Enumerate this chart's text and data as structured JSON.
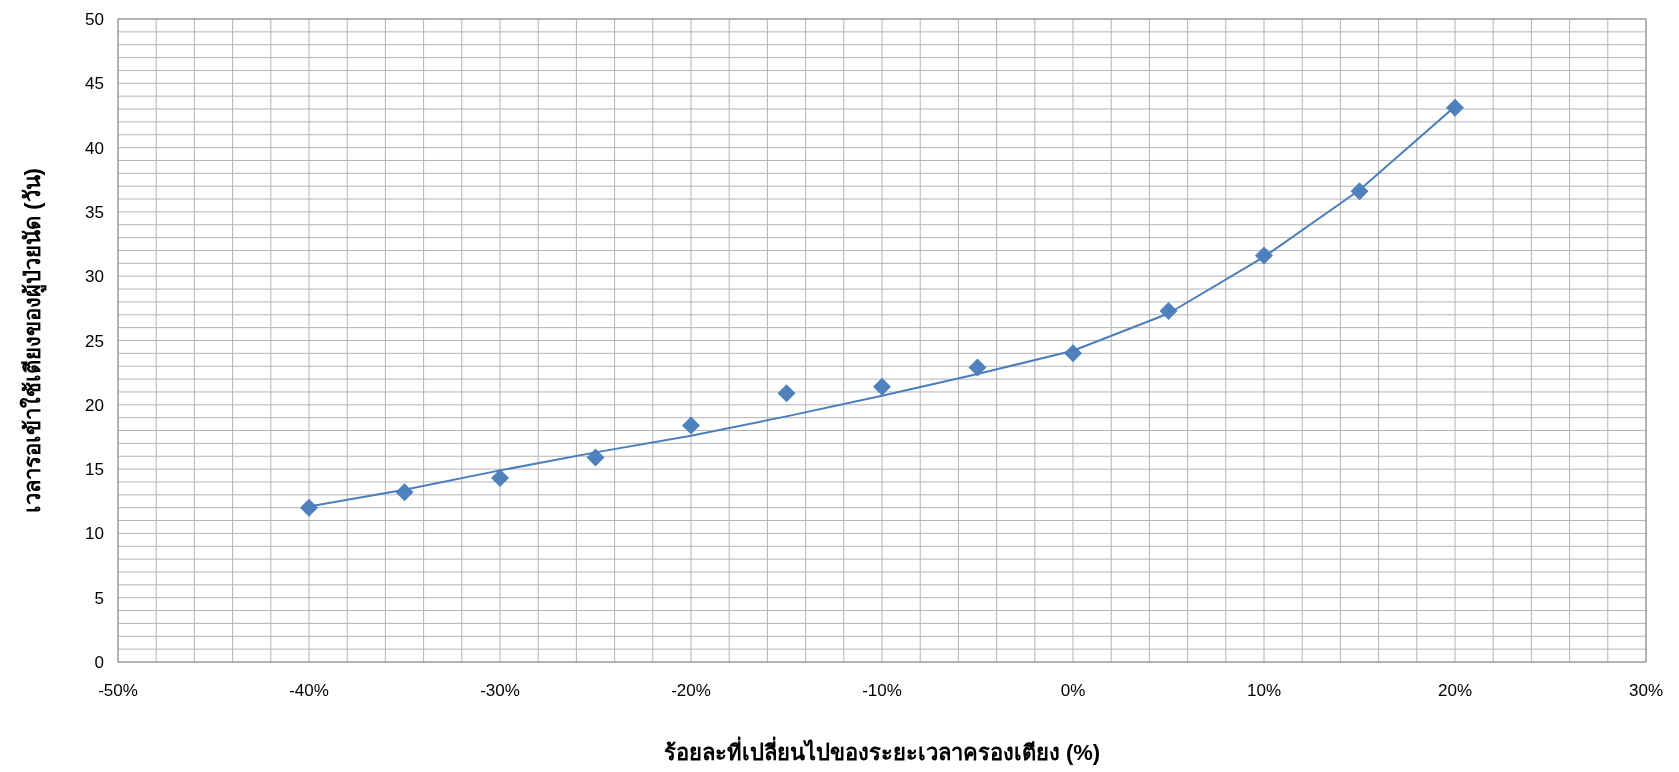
{
  "chart_data": {
    "type": "scatter",
    "xlabel": "ร้อยละที่เปลี่ยนไปของระยะเวลาครองเตียง (%)",
    "ylabel": "เวลารอเข้าใช้เตียงของผู้ป่วยนัด (วัน)",
    "x": [
      -40,
      -35,
      -30,
      -25,
      -20,
      -15,
      -10,
      -5,
      0,
      5,
      10,
      15,
      20
    ],
    "series": [
      {
        "color": "#4f81bd",
        "marker": "diamond",
        "values": [
          12.0,
          13.2,
          14.3,
          15.9,
          18.4,
          20.9,
          21.4,
          22.9,
          24.0,
          27.3,
          31.6,
          36.6,
          43.1
        ]
      },
      {
        "type": "line",
        "color": "#4a7ebb",
        "marker": "none",
        "line_style": "solid",
        "x": [
          -40,
          -35,
          -30,
          -25,
          -20,
          -15,
          -10,
          -5,
          0,
          5,
          10,
          15,
          20
        ],
        "values": [
          12.1,
          13.4,
          14.9,
          16.3,
          17.6,
          19.1,
          20.7,
          22.4,
          24.2,
          27.1,
          31.5,
          36.7,
          43.2
        ]
      }
    ],
    "xlim": [
      -50,
      30
    ],
    "ylim": [
      0,
      50
    ],
    "xticks": [
      {
        "value": -50,
        "label": "-50%"
      },
      {
        "value": -48,
        "label": null
      },
      {
        "value": -46,
        "label": null
      },
      {
        "value": -44,
        "label": null
      },
      {
        "value": -42,
        "label": null
      },
      {
        "value": -40,
        "label": "-40%"
      },
      {
        "value": -38,
        "label": null
      },
      {
        "value": -36,
        "label": null
      },
      {
        "value": -34,
        "label": null
      },
      {
        "value": -32,
        "label": null
      },
      {
        "value": -30,
        "label": "-30%"
      },
      {
        "value": -28,
        "label": null
      },
      {
        "value": -26,
        "label": null
      },
      {
        "value": -24,
        "label": null
      },
      {
        "value": -22,
        "label": null
      },
      {
        "value": -20,
        "label": "-20%"
      },
      {
        "value": -18,
        "label": null
      },
      {
        "value": -16,
        "label": null
      },
      {
        "value": -14,
        "label": null
      },
      {
        "value": -12,
        "label": null
      },
      {
        "value": -10,
        "label": "-10%"
      },
      {
        "value": -8,
        "label": null
      },
      {
        "value": -6,
        "label": null
      },
      {
        "value": -4,
        "label": null
      },
      {
        "value": -2,
        "label": null
      },
      {
        "value": 0,
        "label": "0%"
      },
      {
        "value": 2,
        "label": null
      },
      {
        "value": 4,
        "label": null
      },
      {
        "value": 6,
        "label": null
      },
      {
        "value": 8,
        "label": null
      },
      {
        "value": 10,
        "label": "10%"
      },
      {
        "value": 12,
        "label": null
      },
      {
        "value": 14,
        "label": null
      },
      {
        "value": 16,
        "label": null
      },
      {
        "value": 18,
        "label": null
      },
      {
        "value": 20,
        "label": "20%"
      },
      {
        "value": 22,
        "label": null
      },
      {
        "value": 24,
        "label": null
      },
      {
        "value": 26,
        "label": null
      },
      {
        "value": 28,
        "label": null
      },
      {
        "value": 30,
        "label": "30%"
      }
    ],
    "yticks": [
      0,
      {
        "value": 1,
        "label": null
      },
      {
        "value": 2,
        "label": null
      },
      {
        "value": 3,
        "label": null
      },
      {
        "value": 4,
        "label": null
      },
      5,
      {
        "value": 6,
        "label": null
      },
      {
        "value": 7,
        "label": null
      },
      {
        "value": 8,
        "label": null
      },
      {
        "value": 9,
        "label": null
      },
      10,
      {
        "value": 11,
        "label": null
      },
      {
        "value": 12,
        "label": null
      },
      {
        "value": 13,
        "label": null
      },
      {
        "value": 14,
        "label": null
      },
      15,
      {
        "value": 16,
        "label": null
      },
      {
        "value": 17,
        "label": null
      },
      {
        "value": 18,
        "label": null
      },
      {
        "value": 19,
        "label": null
      },
      20,
      {
        "value": 21,
        "label": null
      },
      {
        "value": 22,
        "label": null
      },
      {
        "value": 23,
        "label": null
      },
      {
        "value": 24,
        "label": null
      },
      25,
      {
        "value": 26,
        "label": null
      },
      {
        "value": 27,
        "label": null
      },
      {
        "value": 28,
        "label": null
      },
      {
        "value": 29,
        "label": null
      },
      30,
      {
        "value": 31,
        "label": null
      },
      {
        "value": 32,
        "label": null
      },
      {
        "value": 33,
        "label": null
      },
      {
        "value": 34,
        "label": null
      },
      35,
      {
        "value": 36,
        "label": null
      },
      {
        "value": 37,
        "label": null
      },
      {
        "value": 38,
        "label": null
      },
      {
        "value": 39,
        "label": null
      },
      40,
      {
        "value": 41,
        "label": null
      },
      {
        "value": 42,
        "label": null
      },
      {
        "value": 43,
        "label": null
      },
      {
        "value": 44,
        "label": null
      },
      45,
      {
        "value": 46,
        "label": null
      },
      {
        "value": 47,
        "label": null
      },
      {
        "value": 48,
        "label": null
      },
      {
        "value": 49,
        "label": null
      },
      50
    ],
    "grid": true
  }
}
